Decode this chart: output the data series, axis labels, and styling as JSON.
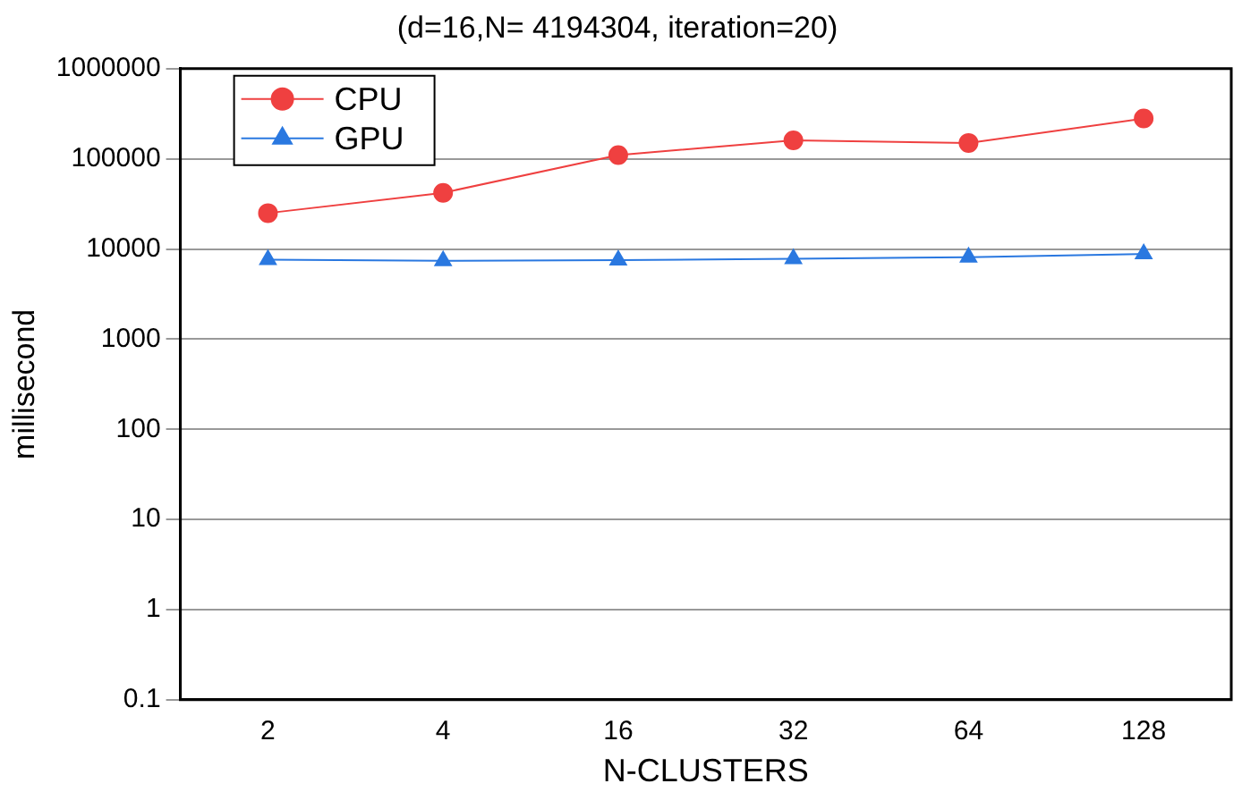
{
  "chart_data": {
    "type": "line",
    "title": "(d=16,N= 4194304, iteration=20)",
    "xlabel": "N-CLUSTERS",
    "ylabel": "millisecond",
    "categories": [
      "2",
      "4",
      "16",
      "32",
      "64",
      "128"
    ],
    "series": [
      {
        "name": "CPU",
        "color": "#ef4040",
        "marker": "circle",
        "values": [
          25000,
          42000,
          110000,
          160000,
          150000,
          280000
        ]
      },
      {
        "name": "GPU",
        "color": "#2a78e0",
        "marker": "triangle",
        "values": [
          7600,
          7400,
          7500,
          7800,
          8100,
          8800
        ]
      }
    ],
    "log": "y",
    "ylim": [
      0.1,
      1000000
    ],
    "yticks": [
      0.1,
      1,
      10,
      100,
      1000,
      10000,
      100000,
      1000000
    ],
    "grid": "y",
    "legend": "top left",
    "line_style": "solid"
  }
}
